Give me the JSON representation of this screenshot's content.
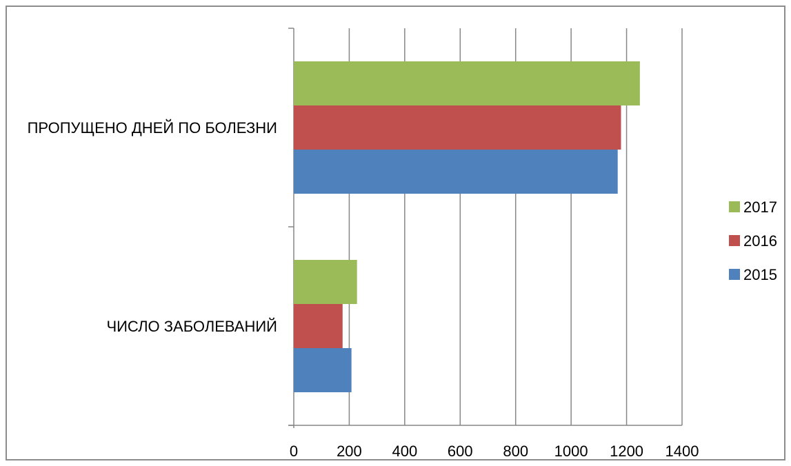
{
  "chart_data": {
    "type": "bar",
    "orientation": "horizontal",
    "categories": [
      "ЧИСЛО ЗАБОЛЕВАНИЙ",
      "ПРОПУЩЕНО ДНЕЙ ПО БОЛЕЗНИ"
    ],
    "series": [
      {
        "name": "2015",
        "color": "#4f81bd",
        "values": [
          208,
          1168
        ]
      },
      {
        "name": "2016",
        "color": "#c0504d",
        "values": [
          176,
          1180
        ]
      },
      {
        "name": "2017",
        "color": "#9bbb59",
        "values": [
          228,
          1248
        ]
      }
    ],
    "xlim": [
      0,
      1400
    ],
    "xticks": [
      "0",
      "200",
      "400",
      "600",
      "800",
      "1000",
      "1200",
      "1400"
    ],
    "grid": "vertical",
    "legend": [
      "2017",
      "2016",
      "2015"
    ],
    "legend_placement": "right"
  }
}
